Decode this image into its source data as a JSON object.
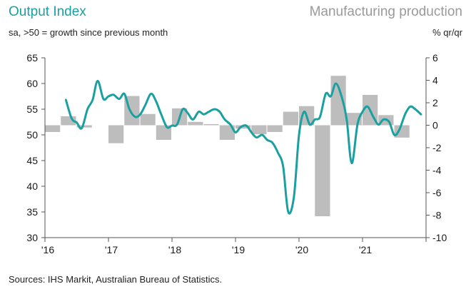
{
  "header": {
    "left_title": "Output Index",
    "right_title": "Manufacturing production",
    "left_subtitle": "sa, >50 = growth since previous month",
    "right_subtitle": "% qr/qr"
  },
  "footer": {
    "source": "Sources: IHS Markit, Australian Bureau of Statistics."
  },
  "colors": {
    "line": "#1aa0a0",
    "bar": "#bdbdbd",
    "axis": "#555555"
  },
  "chart_data": {
    "type": "line+bar",
    "x_ticks": [
      "'16",
      "'17",
      "'18",
      "'19",
      "'20",
      "'21"
    ],
    "x_tick_values": [
      2016,
      2017,
      2018,
      2019,
      2020,
      2021
    ],
    "x_range": [
      2016,
      2022
    ],
    "left_axis": {
      "label": "Output Index",
      "ylim": [
        30,
        65
      ],
      "ticks": [
        30,
        35,
        40,
        45,
        50,
        55,
        60,
        65
      ]
    },
    "right_axis": {
      "label": "% qr/qr",
      "ylim": [
        -10,
        6
      ],
      "ticks": [
        -10,
        -8,
        -6,
        -4,
        -2,
        0,
        2,
        4,
        6
      ]
    },
    "series": [
      {
        "name": "Output Index",
        "type": "line",
        "axis": "left",
        "x": [
          2016.33,
          2016.42,
          2016.5,
          2016.58,
          2016.67,
          2016.75,
          2016.83,
          2016.92,
          2017.0,
          2017.08,
          2017.17,
          2017.25,
          2017.33,
          2017.42,
          2017.5,
          2017.58,
          2017.67,
          2017.75,
          2017.83,
          2017.92,
          2018.0,
          2018.08,
          2018.17,
          2018.25,
          2018.33,
          2018.42,
          2018.5,
          2018.58,
          2018.67,
          2018.75,
          2018.83,
          2018.92,
          2019.0,
          2019.08,
          2019.17,
          2019.25,
          2019.33,
          2019.42,
          2019.5,
          2019.58,
          2019.67,
          2019.75,
          2019.83,
          2019.92,
          2020.0,
          2020.08,
          2020.17,
          2020.25,
          2020.33,
          2020.42,
          2020.5,
          2020.58,
          2020.67,
          2020.75,
          2020.83,
          2020.92,
          2021.0,
          2021.08,
          2021.17,
          2021.25,
          2021.33,
          2021.42,
          2021.5,
          2021.58,
          2021.67,
          2021.75,
          2021.83,
          2021.92
        ],
        "values": [
          56.8,
          53.2,
          52.4,
          51.3,
          55.0,
          56.8,
          60.5,
          57.0,
          57.5,
          57.8,
          57.0,
          58.0,
          55.0,
          53.5,
          54.0,
          55.8,
          58.0,
          56.5,
          54.0,
          51.5,
          51.8,
          52.0,
          55.0,
          54.2,
          53.0,
          54.5,
          54.0,
          54.5,
          55.0,
          54.5,
          53.0,
          52.0,
          50.5,
          51.5,
          51.8,
          50.5,
          49.5,
          50.0,
          49.0,
          48.5,
          46.5,
          43.8,
          35.0,
          38.0,
          50.0,
          54.5,
          52.0,
          53.0,
          53.5,
          58.0,
          57.5,
          60.0,
          57.5,
          53.0,
          44.5,
          52.0,
          54.5,
          55.5,
          53.5,
          52.0,
          53.0,
          52.5,
          50.0,
          51.0,
          54.0,
          55.5,
          55.0,
          54.0
        ],
        "color": "#1aa0a0"
      },
      {
        "name": "Manufacturing production",
        "type": "bar",
        "axis": "right",
        "x": [
          2016.0,
          2016.25,
          2016.5,
          2016.75,
          2017.0,
          2017.25,
          2017.5,
          2017.75,
          2018.0,
          2018.25,
          2018.5,
          2018.75,
          2019.0,
          2019.25,
          2019.5,
          2019.75,
          2020.0,
          2020.25,
          2020.5,
          2020.75,
          2021.0,
          2021.25,
          2021.5,
          2021.75
        ],
        "values": [
          -0.6,
          0.8,
          -0.2,
          0.0,
          -1.6,
          2.6,
          1.0,
          -1.3,
          1.5,
          0.3,
          0.1,
          -1.3,
          -0.3,
          -0.8,
          -0.6,
          1.2,
          1.7,
          -8.1,
          4.4,
          1.1,
          2.7,
          0.9,
          -1.1,
          0.0
        ],
        "color": "#bdbdbd"
      }
    ]
  }
}
